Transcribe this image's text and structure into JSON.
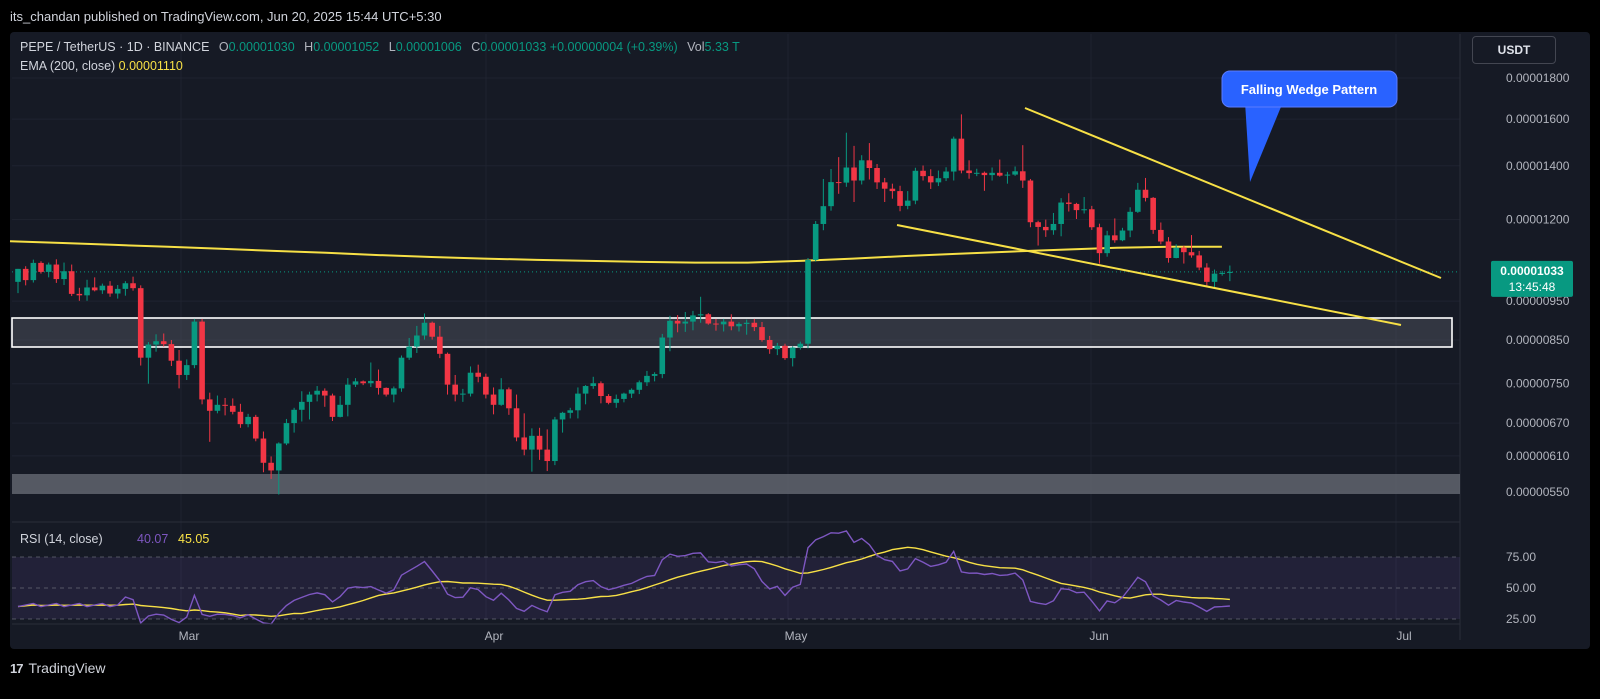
{
  "header": {
    "published": "its_chandan published on TradingView.com, Jun 20, 2025 15:44 UTC+5:30"
  },
  "legend": {
    "symbol": "PEPE / TetherUS · 1D · BINANCE",
    "open_label": "O",
    "open": "0.00001030",
    "high_label": "H",
    "high": "0.00001052",
    "low_label": "L",
    "low": "0.00001006",
    "close_label": "C",
    "close": "0.00001033",
    "change": "+0.00000004 (+0.39%)",
    "vol_label": "Vol",
    "vol": "5.33 T",
    "ema_label": "EMA (200, close)",
    "ema_value": "0.00001110"
  },
  "currency_button": "USDT",
  "price_badge": {
    "value": "0.00001033",
    "countdown": "13:45:48"
  },
  "annotation": "Falling Wedge Pattern",
  "rsi": {
    "label": "RSI (14, close)",
    "value": "40.07",
    "ma": "45.05"
  },
  "branding": "TradingView",
  "colors": {
    "up": "#089981",
    "down": "#f23645",
    "ema": "#f7e046",
    "rsi": "#7e57c2",
    "annotation": "#2962ff"
  },
  "chart_data": {
    "type": "candlestick",
    "title": "PEPE / TetherUS · 1D · BINANCE",
    "y_ticks": [
      "0.00001800",
      "0.00001600",
      "0.00001400",
      "0.00001200",
      "0.00000950",
      "0.00000850",
      "0.00000750",
      "0.00000670",
      "0.00000610",
      "0.00000550"
    ],
    "x_labels": [
      "Mar",
      "Apr",
      "May",
      "Jun",
      "Jul"
    ],
    "candles": [
      {
        "o": 10.04,
        "h": 10.42,
        "l": 9.72,
        "c": 10.42
      },
      {
        "o": 10.42,
        "h": 10.5,
        "l": 9.94,
        "c": 10.09
      },
      {
        "o": 10.09,
        "h": 10.7,
        "l": 10.02,
        "c": 10.6
      },
      {
        "o": 10.6,
        "h": 10.65,
        "l": 10.28,
        "c": 10.33
      },
      {
        "o": 10.33,
        "h": 10.61,
        "l": 10.17,
        "c": 10.55
      },
      {
        "o": 10.55,
        "h": 10.71,
        "l": 10.01,
        "c": 10.12
      },
      {
        "o": 10.12,
        "h": 10.61,
        "l": 9.95,
        "c": 10.35
      },
      {
        "o": 10.35,
        "h": 10.55,
        "l": 9.64,
        "c": 9.7
      },
      {
        "o": 9.7,
        "h": 9.87,
        "l": 9.51,
        "c": 9.66
      },
      {
        "o": 9.66,
        "h": 10.1,
        "l": 9.51,
        "c": 9.88
      },
      {
        "o": 9.88,
        "h": 10.17,
        "l": 9.77,
        "c": 9.8
      },
      {
        "o": 9.8,
        "h": 9.99,
        "l": 9.7,
        "c": 9.93
      },
      {
        "o": 9.93,
        "h": 10.06,
        "l": 9.62,
        "c": 9.71
      },
      {
        "o": 9.71,
        "h": 9.95,
        "l": 9.57,
        "c": 9.84
      },
      {
        "o": 9.84,
        "h": 10.06,
        "l": 9.65,
        "c": 10.0
      },
      {
        "o": 10.0,
        "h": 10.19,
        "l": 9.79,
        "c": 9.86
      },
      {
        "o": 9.86,
        "h": 9.94,
        "l": 7.9,
        "c": 8.08
      },
      {
        "o": 8.08,
        "h": 8.45,
        "l": 7.5,
        "c": 8.39
      },
      {
        "o": 8.39,
        "h": 8.64,
        "l": 8.22,
        "c": 8.47
      },
      {
        "o": 8.47,
        "h": 8.66,
        "l": 8.34,
        "c": 8.4
      },
      {
        "o": 8.4,
        "h": 8.5,
        "l": 7.89,
        "c": 8.01
      },
      {
        "o": 8.01,
        "h": 8.26,
        "l": 7.4,
        "c": 7.69
      },
      {
        "o": 7.69,
        "h": 8.04,
        "l": 7.58,
        "c": 7.91
      },
      {
        "o": 7.91,
        "h": 9.03,
        "l": 7.84,
        "c": 8.96
      },
      {
        "o": 8.96,
        "h": 9.03,
        "l": 7.07,
        "c": 7.17
      },
      {
        "o": 7.17,
        "h": 7.31,
        "l": 6.35,
        "c": 6.94
      },
      {
        "o": 6.94,
        "h": 7.25,
        "l": 6.89,
        "c": 7.06
      },
      {
        "o": 7.06,
        "h": 7.2,
        "l": 6.85,
        "c": 7.04
      },
      {
        "o": 7.04,
        "h": 7.19,
        "l": 6.87,
        "c": 6.92
      },
      {
        "o": 6.92,
        "h": 7.08,
        "l": 6.61,
        "c": 6.68
      },
      {
        "o": 6.68,
        "h": 6.88,
        "l": 6.62,
        "c": 6.82
      },
      {
        "o": 6.82,
        "h": 6.86,
        "l": 6.36,
        "c": 6.41
      },
      {
        "o": 6.41,
        "h": 6.54,
        "l": 5.82,
        "c": 5.98
      },
      {
        "o": 5.98,
        "h": 6.09,
        "l": 5.71,
        "c": 5.85
      },
      {
        "o": 5.85,
        "h": 6.34,
        "l": 5.46,
        "c": 6.32
      },
      {
        "o": 6.32,
        "h": 6.78,
        "l": 6.29,
        "c": 6.7
      },
      {
        "o": 6.7,
        "h": 7.0,
        "l": 6.52,
        "c": 6.96
      },
      {
        "o": 6.96,
        "h": 7.34,
        "l": 6.73,
        "c": 7.12
      },
      {
        "o": 7.12,
        "h": 7.33,
        "l": 6.77,
        "c": 7.27
      },
      {
        "o": 7.27,
        "h": 7.45,
        "l": 7.13,
        "c": 7.35
      },
      {
        "o": 7.35,
        "h": 7.4,
        "l": 7.02,
        "c": 7.25
      },
      {
        "o": 7.25,
        "h": 7.29,
        "l": 6.74,
        "c": 6.82
      },
      {
        "o": 6.82,
        "h": 7.24,
        "l": 6.81,
        "c": 7.06
      },
      {
        "o": 7.06,
        "h": 7.62,
        "l": 6.83,
        "c": 7.48
      },
      {
        "o": 7.48,
        "h": 7.62,
        "l": 7.43,
        "c": 7.55
      },
      {
        "o": 7.55,
        "h": 7.57,
        "l": 7.47,
        "c": 7.51
      },
      {
        "o": 7.51,
        "h": 7.97,
        "l": 7.43,
        "c": 7.56
      },
      {
        "o": 7.56,
        "h": 7.81,
        "l": 7.27,
        "c": 7.41
      },
      {
        "o": 7.41,
        "h": 7.42,
        "l": 7.23,
        "c": 7.27
      },
      {
        "o": 7.27,
        "h": 7.44,
        "l": 7.11,
        "c": 7.4
      },
      {
        "o": 7.4,
        "h": 8.13,
        "l": 7.33,
        "c": 8.08
      },
      {
        "o": 8.08,
        "h": 8.55,
        "l": 8.03,
        "c": 8.34
      },
      {
        "o": 8.34,
        "h": 8.85,
        "l": 8.19,
        "c": 8.61
      },
      {
        "o": 8.61,
        "h": 9.17,
        "l": 8.51,
        "c": 8.93
      },
      {
        "o": 8.93,
        "h": 8.96,
        "l": 8.51,
        "c": 8.58
      },
      {
        "o": 8.58,
        "h": 8.85,
        "l": 8.07,
        "c": 8.17
      },
      {
        "o": 8.17,
        "h": 8.2,
        "l": 7.27,
        "c": 7.48
      },
      {
        "o": 7.48,
        "h": 7.69,
        "l": 7.13,
        "c": 7.27
      },
      {
        "o": 7.27,
        "h": 7.39,
        "l": 7.12,
        "c": 7.29
      },
      {
        "o": 7.29,
        "h": 7.88,
        "l": 7.23,
        "c": 7.74
      },
      {
        "o": 7.74,
        "h": 7.92,
        "l": 7.53,
        "c": 7.65
      },
      {
        "o": 7.65,
        "h": 7.72,
        "l": 7.19,
        "c": 7.27
      },
      {
        "o": 7.27,
        "h": 7.42,
        "l": 6.87,
        "c": 7.06
      },
      {
        "o": 7.06,
        "h": 7.62,
        "l": 7.04,
        "c": 7.38
      },
      {
        "o": 7.38,
        "h": 7.42,
        "l": 6.86,
        "c": 6.99
      },
      {
        "o": 6.99,
        "h": 7.27,
        "l": 6.36,
        "c": 6.43
      },
      {
        "o": 6.43,
        "h": 6.89,
        "l": 6.11,
        "c": 6.21
      },
      {
        "o": 6.21,
        "h": 6.6,
        "l": 5.83,
        "c": 6.46
      },
      {
        "o": 6.46,
        "h": 6.61,
        "l": 6.03,
        "c": 6.21
      },
      {
        "o": 6.21,
        "h": 6.58,
        "l": 5.84,
        "c": 6.01
      },
      {
        "o": 6.01,
        "h": 6.82,
        "l": 5.94,
        "c": 6.77
      },
      {
        "o": 6.77,
        "h": 6.92,
        "l": 6.52,
        "c": 6.9
      },
      {
        "o": 6.9,
        "h": 7.0,
        "l": 6.79,
        "c": 6.95
      },
      {
        "o": 6.95,
        "h": 7.42,
        "l": 6.79,
        "c": 7.29
      },
      {
        "o": 7.29,
        "h": 7.47,
        "l": 7.07,
        "c": 7.45
      },
      {
        "o": 7.45,
        "h": 7.65,
        "l": 7.39,
        "c": 7.51
      },
      {
        "o": 7.51,
        "h": 7.55,
        "l": 7.09,
        "c": 7.24
      },
      {
        "o": 7.24,
        "h": 7.28,
        "l": 7.07,
        "c": 7.1
      },
      {
        "o": 7.1,
        "h": 7.27,
        "l": 7.0,
        "c": 7.18
      },
      {
        "o": 7.18,
        "h": 7.31,
        "l": 7.11,
        "c": 7.29
      },
      {
        "o": 7.29,
        "h": 7.4,
        "l": 7.2,
        "c": 7.37
      },
      {
        "o": 7.37,
        "h": 7.57,
        "l": 7.28,
        "c": 7.53
      },
      {
        "o": 7.53,
        "h": 7.78,
        "l": 7.45,
        "c": 7.67
      },
      {
        "o": 7.67,
        "h": 7.75,
        "l": 7.55,
        "c": 7.71
      },
      {
        "o": 7.71,
        "h": 8.65,
        "l": 7.62,
        "c": 8.56
      },
      {
        "o": 8.56,
        "h": 9.11,
        "l": 8.23,
        "c": 8.98
      },
      {
        "o": 8.98,
        "h": 9.13,
        "l": 8.69,
        "c": 8.91
      },
      {
        "o": 8.91,
        "h": 9.21,
        "l": 8.7,
        "c": 8.96
      },
      {
        "o": 8.96,
        "h": 9.24,
        "l": 8.74,
        "c": 9.12
      },
      {
        "o": 9.12,
        "h": 9.62,
        "l": 8.93,
        "c": 9.15
      },
      {
        "o": 9.15,
        "h": 9.18,
        "l": 8.88,
        "c": 8.91
      },
      {
        "o": 8.91,
        "h": 9.03,
        "l": 8.73,
        "c": 8.89
      },
      {
        "o": 8.89,
        "h": 9.03,
        "l": 8.71,
        "c": 8.96
      },
      {
        "o": 8.96,
        "h": 9.15,
        "l": 8.74,
        "c": 8.84
      },
      {
        "o": 8.84,
        "h": 8.94,
        "l": 8.71,
        "c": 8.9
      },
      {
        "o": 8.9,
        "h": 9.01,
        "l": 8.63,
        "c": 8.93
      },
      {
        "o": 8.93,
        "h": 9.03,
        "l": 8.72,
        "c": 8.82
      },
      {
        "o": 8.82,
        "h": 8.95,
        "l": 8.46,
        "c": 8.5
      },
      {
        "o": 8.5,
        "h": 8.6,
        "l": 8.17,
        "c": 8.28
      },
      {
        "o": 8.28,
        "h": 8.43,
        "l": 8.14,
        "c": 8.36
      },
      {
        "o": 8.36,
        "h": 8.41,
        "l": 8.03,
        "c": 8.07
      },
      {
        "o": 8.07,
        "h": 8.35,
        "l": 7.88,
        "c": 8.32
      },
      {
        "o": 8.32,
        "h": 8.46,
        "l": 8.27,
        "c": 8.41
      },
      {
        "o": 8.41,
        "h": 10.75,
        "l": 8.3,
        "c": 10.69
      },
      {
        "o": 10.69,
        "h": 11.95,
        "l": 10.64,
        "c": 11.85
      },
      {
        "o": 11.85,
        "h": 13.48,
        "l": 11.64,
        "c": 12.47
      },
      {
        "o": 12.47,
        "h": 13.87,
        "l": 12.31,
        "c": 13.36
      },
      {
        "o": 13.36,
        "h": 14.35,
        "l": 12.92,
        "c": 13.34
      },
      {
        "o": 13.34,
        "h": 15.39,
        "l": 13.18,
        "c": 13.93
      },
      {
        "o": 13.93,
        "h": 14.82,
        "l": 12.62,
        "c": 13.42
      },
      {
        "o": 13.42,
        "h": 14.43,
        "l": 13.27,
        "c": 14.22
      },
      {
        "o": 14.22,
        "h": 14.94,
        "l": 13.46,
        "c": 13.91
      },
      {
        "o": 13.91,
        "h": 14.07,
        "l": 13.1,
        "c": 13.35
      },
      {
        "o": 13.35,
        "h": 13.52,
        "l": 12.62,
        "c": 13.11
      },
      {
        "o": 13.11,
        "h": 13.3,
        "l": 12.74,
        "c": 13.02
      },
      {
        "o": 13.02,
        "h": 13.22,
        "l": 12.29,
        "c": 12.48
      },
      {
        "o": 12.48,
        "h": 13.02,
        "l": 12.36,
        "c": 12.67
      },
      {
        "o": 12.67,
        "h": 13.92,
        "l": 12.54,
        "c": 13.8
      },
      {
        "o": 13.8,
        "h": 14.01,
        "l": 13.42,
        "c": 13.59
      },
      {
        "o": 13.59,
        "h": 13.86,
        "l": 13.1,
        "c": 13.35
      },
      {
        "o": 13.35,
        "h": 13.81,
        "l": 13.21,
        "c": 13.51
      },
      {
        "o": 13.51,
        "h": 13.94,
        "l": 13.4,
        "c": 13.77
      },
      {
        "o": 13.77,
        "h": 15.22,
        "l": 13.42,
        "c": 15.13
      },
      {
        "o": 15.13,
        "h": 16.22,
        "l": 13.7,
        "c": 13.81
      },
      {
        "o": 13.81,
        "h": 14.22,
        "l": 13.49,
        "c": 13.71
      },
      {
        "o": 13.71,
        "h": 13.88,
        "l": 13.59,
        "c": 13.72
      },
      {
        "o": 13.72,
        "h": 13.77,
        "l": 13.03,
        "c": 13.63
      },
      {
        "o": 13.63,
        "h": 13.93,
        "l": 13.42,
        "c": 13.72
      },
      {
        "o": 13.72,
        "h": 14.25,
        "l": 13.57,
        "c": 13.61
      },
      {
        "o": 13.61,
        "h": 13.76,
        "l": 13.3,
        "c": 13.65
      },
      {
        "o": 13.65,
        "h": 13.97,
        "l": 13.6,
        "c": 13.78
      },
      {
        "o": 13.78,
        "h": 14.85,
        "l": 13.14,
        "c": 13.42
      },
      {
        "o": 13.42,
        "h": 13.48,
        "l": 11.74,
        "c": 11.91
      },
      {
        "o": 11.91,
        "h": 11.96,
        "l": 11.14,
        "c": 11.75
      },
      {
        "o": 11.75,
        "h": 12.0,
        "l": 11.42,
        "c": 11.64
      },
      {
        "o": 11.64,
        "h": 12.23,
        "l": 11.49,
        "c": 11.85
      },
      {
        "o": 11.85,
        "h": 12.76,
        "l": 11.44,
        "c": 12.6
      },
      {
        "o": 12.6,
        "h": 12.94,
        "l": 12.28,
        "c": 12.55
      },
      {
        "o": 12.55,
        "h": 12.59,
        "l": 12.02,
        "c": 12.33
      },
      {
        "o": 12.33,
        "h": 12.8,
        "l": 12.21,
        "c": 12.36
      },
      {
        "o": 12.36,
        "h": 12.48,
        "l": 11.65,
        "c": 11.74
      },
      {
        "o": 11.74,
        "h": 11.86,
        "l": 10.58,
        "c": 10.9
      },
      {
        "o": 10.9,
        "h": 11.62,
        "l": 10.79,
        "c": 11.47
      },
      {
        "o": 11.47,
        "h": 12.04,
        "l": 11.23,
        "c": 11.31
      },
      {
        "o": 11.31,
        "h": 11.72,
        "l": 11.28,
        "c": 11.63
      },
      {
        "o": 11.63,
        "h": 12.43,
        "l": 11.41,
        "c": 12.27
      },
      {
        "o": 12.27,
        "h": 13.33,
        "l": 12.23,
        "c": 13.07
      },
      {
        "o": 13.07,
        "h": 13.52,
        "l": 12.64,
        "c": 12.77
      },
      {
        "o": 12.77,
        "h": 12.8,
        "l": 11.52,
        "c": 11.65
      },
      {
        "o": 11.65,
        "h": 11.9,
        "l": 11.18,
        "c": 11.27
      },
      {
        "o": 11.27,
        "h": 11.41,
        "l": 10.61,
        "c": 10.75
      },
      {
        "o": 10.75,
        "h": 11.18,
        "l": 10.74,
        "c": 11.07
      },
      {
        "o": 11.07,
        "h": 11.13,
        "l": 10.58,
        "c": 10.93
      },
      {
        "o": 10.93,
        "h": 11.48,
        "l": 10.76,
        "c": 10.83
      },
      {
        "o": 10.83,
        "h": 10.97,
        "l": 10.38,
        "c": 10.46
      },
      {
        "o": 10.46,
        "h": 10.59,
        "l": 9.89,
        "c": 10.04
      },
      {
        "o": 10.04,
        "h": 10.4,
        "l": 9.86,
        "c": 10.28
      },
      {
        "o": 10.28,
        "h": 10.36,
        "l": 10.22,
        "c": 10.3
      },
      {
        "o": 10.3,
        "h": 10.52,
        "l": 10.06,
        "c": 10.33
      }
    ],
    "ema_200": [
      11.28,
      11.22,
      11.16,
      11.1,
      11.04,
      10.97,
      10.91,
      10.84,
      10.78,
      10.73,
      10.69,
      10.66,
      10.63,
      10.61,
      10.61,
      10.66,
      10.73,
      10.81,
      10.88,
      10.95,
      11.01,
      11.07,
      11.1,
      11.1
    ],
    "rsi": {
      "ylim": [
        25,
        75
      ],
      "ticks": [
        "75.00",
        "50.00",
        "25.00"
      ],
      "overbought": 70,
      "middle": 50,
      "oversold": 30
    }
  }
}
